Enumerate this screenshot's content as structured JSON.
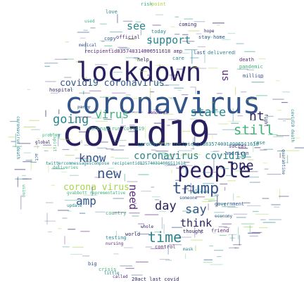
{
  "words": {
    "covid19": "covid19",
    "coronavirus": "coronavirus",
    "lockdown": "lockdown",
    "people": "people",
    "trump": "trump",
    "time": "time",
    "still": "still",
    "state": "state",
    "nt": "nt",
    "one": "one",
    "new": "new",
    "know": "know",
    "going": "going",
    "virus": "virus",
    "say": "say",
    "day": "day",
    "think": "think",
    "amp": "amp",
    "corona_virus": "corona virus",
    "coronavirus_covid19_a": "covid19 coronavirus",
    "coronavirus_covid19_b": "coronavirus covid19",
    "see": "see",
    "support": "support",
    "need": "need",
    "recipient": "recipientid835740314006511618 amp",
    "recipient2": "coronavirus recipientid835740314006511618",
    "risk": "risk",
    "point": "point",
    "love": "love",
    "used": "used",
    "copy": "copy",
    "official": "official",
    "today": "today",
    "stay": "stay",
    "home": "home",
    "coming": "coming",
    "medical": "medical",
    "care": "care",
    "last": "last",
    "delivered": "delivered",
    "death": "death",
    "hospital": "hospital",
    "testing": "testing",
    "pandemic": "pandemic",
    "million": "million",
    "help": "help",
    "social": "social",
    "country": "country",
    "government": "government",
    "world": "world",
    "week": "week",
    "case": "case",
    "american": "american",
    "china": "china",
    "cure": "cure",
    "friend": "friend",
    "thought": "thought",
    "big": "big",
    "crisis": "crisis",
    "little": "little",
    "called": "called",
    "act": "act",
    "last_covid": "20act last covid",
    "control": "control",
    "twitter": "twitter",
    "commessages": "twittercommessagescompose recipientid835740314006511618",
    "together": "together",
    "family": "family",
    "work": "work",
    "us": "us",
    "got": "got",
    "want": "want",
    "like": "like",
    "life": "life",
    "must": "must",
    "even": "even",
    "news": "news",
    "update": "update",
    "due": "due",
    "right": "right",
    "health": "health",
    "coronavirus_death": "coronavirus death",
    "covid19_death": "covid19 death",
    "quarantine": "quarantine",
    "global": "global",
    "problem": "problem",
    "someone": "someone",
    "believe": "believe",
    "ca": "ca",
    "back": "back",
    "using": "using",
    "spirit": "spirit",
    "democrat": "democrat",
    "fight": "fight",
    "spread": "spread",
    "covid_outbreak": "covid19 outbreak",
    "lockdown_covid": "lockdown covid19",
    "mask": "mask",
    "president": "president",
    "representative": "representative",
    "gvabbott": "gvabbott representative",
    "coronavirus_covid": "coronavirus covid19",
    "take": "take",
    "first": "first",
    "make": "make",
    "open": "open",
    "many": "many",
    "way": "way",
    "test": "test",
    "deliveries": "deliveries",
    "wear": "wear",
    "whole": "whole",
    "nursing": "nursing",
    "hoax": "hoax",
    "fact": "fact",
    "economy": "economy",
    "party": "party",
    "hope": "hope"
  }
}
